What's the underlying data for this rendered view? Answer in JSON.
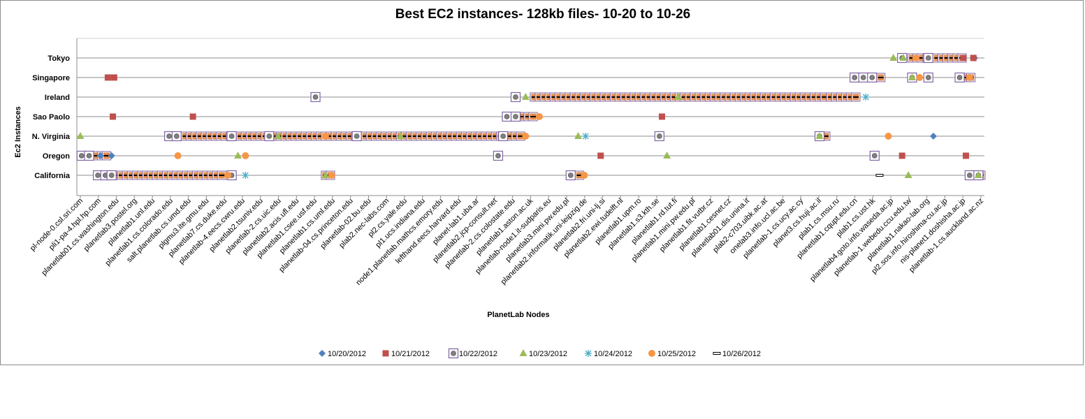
{
  "chart_data": {
    "type": "scatter",
    "title": "Best EC2 instances- 128kb files- 10-20 to 10-26",
    "xlabel": "PlanetLab Nodes",
    "ylabel": "Ec2 Instances",
    "y_categories": [
      "California",
      "Oregon",
      "N. Virginia",
      "Sao Paolo",
      "Ireland",
      "Singapore",
      "Tokyo"
    ],
    "grid": "horizontal",
    "legend_position": "bottom",
    "x_labels": [
      "pl-node-0.csl.sri.com",
      "pli1-pa-4.hpl.hp.com",
      "planetlab01.cs.washington.edu",
      "planetlab3.postel.org",
      "planetlab1.unl.edu",
      "planetlab1.cs.colorado.edu",
      "salt.planetlab.cs.umd.edu",
      "plgmu3.ite.gmu.edu",
      "planetlab7.cs.duke.edu",
      "planetlab-4.eecs.cwru.edu",
      "planetlab2.tsuniv.edu",
      "planetlab-2.cs.uic.edu",
      "planetlab2.acis.ufl.edu",
      "planetlab1.csee.usf.edu",
      "planetlab1.cs.uml.edu",
      "planetlab-04.cs.princeton.edu",
      "planetlab-02.bu.edu",
      "plab2.nec-labs.com",
      "pl2.cs.yale.edu",
      "pl1.ucs.indiana.edu",
      "node1.planetlab.mathcs.emory.edu",
      "lefthand.eecs.harvard.edu",
      "planet-lab1.uba.ar",
      "planetlab2.jcp-consult.net",
      "planetlab-2.cs.colostate.edu",
      "planetlab1.aston.ac.uk",
      "planetlab-node1.it-sudparis.eu",
      "planetlab3.mini.pw.edu.pl",
      "planetlab2.informatik.uni-leipzig.de",
      "planetlab2.fri.uni-lj.si",
      "planetlab2.ewi.tudelft.nl",
      "planetlab1.upm.ro",
      "planetlab1.s3.kth.se",
      "planetlab1.rd.tut.fi",
      "planetlab1.mini.pw.edu.pl",
      "planetlab1.fit.vutbr.cz",
      "planetlab1.cesnet.cz",
      "planetlab01.dis.unina.it",
      "plab2-c703.uibk.ac.at",
      "onelab3.info.ucl.ac.be",
      "planetlab-1.cs.ucy.ac.cy",
      "planet3.cs.huji.ac.il",
      "plab1.cs.msu.ru",
      "planetlab1.cqupt.edu.cn",
      "plab1.cs.ust.hk",
      "planetlab4.goto.info.waseda.ac.jp",
      "planetlab-1.webedu.ccu.edu.tw",
      "planetlab1.nakao-lab.org",
      "pl2.sos.info.hiroshima-cu.ac.jp",
      "nis-planet1.doshisha.ac.jp",
      "planetlab-1.cs.auckland.ac.nz"
    ],
    "series": [
      {
        "name": "10/20/2012",
        "marker": "diamond",
        "color": "#4f81bd",
        "points": [
          [
            71.5,
            6
          ],
          [
            68.2,
            2
          ],
          [
            1.6,
            1
          ],
          [
            2.5,
            1
          ]
        ]
      },
      {
        "name": "10/21/2012",
        "marker": "square",
        "color": "#c0504d",
        "points": [
          [
            9,
            3
          ],
          [
            46.5,
            3
          ],
          [
            41.6,
            1
          ],
          [
            70.6,
            6
          ],
          [
            71.4,
            6
          ],
          [
            2.2,
            5
          ],
          [
            2.7,
            5
          ],
          [
            2.6,
            3
          ],
          [
            65.7,
            1
          ],
          [
            70.8,
            1
          ]
        ]
      },
      {
        "name": "10/22/2012",
        "marker": "boxed-circle",
        "color": "#8064a2",
        "points": [
          [
            65.7,
            6
          ],
          [
            67.8,
            6
          ],
          [
            61.9,
            5
          ],
          [
            62.6,
            5
          ],
          [
            63.3,
            5
          ],
          [
            66.5,
            5
          ],
          [
            67.8,
            5
          ],
          [
            70.3,
            5
          ],
          [
            18.8,
            4
          ],
          [
            34.8,
            4
          ],
          [
            34.1,
            3
          ],
          [
            34.8,
            3
          ],
          [
            7.1,
            2
          ],
          [
            7.7,
            2
          ],
          [
            12.1,
            2
          ],
          [
            15.1,
            2
          ],
          [
            22.1,
            2
          ],
          [
            33.8,
            2
          ],
          [
            46.3,
            2
          ],
          [
            59.1,
            2
          ],
          [
            0.1,
            1
          ],
          [
            0.7,
            1
          ],
          [
            33.4,
            1
          ],
          [
            63.5,
            1
          ],
          [
            1.4,
            0
          ],
          [
            2.0,
            0
          ],
          [
            2.5,
            0
          ],
          [
            12.1,
            0
          ],
          [
            39.2,
            0
          ],
          [
            71.1,
            0
          ],
          [
            71.8,
            0
          ]
        ]
      },
      {
        "name": "10/23/2012",
        "marker": "triangle",
        "color": "#9bbb59",
        "points": [
          [
            65.0,
            6
          ],
          [
            65.8,
            6
          ],
          [
            66.5,
            5
          ],
          [
            35.6,
            4
          ],
          [
            47.8,
            4
          ],
          [
            0,
            2
          ],
          [
            15.8,
            2
          ],
          [
            25.6,
            2
          ],
          [
            39.8,
            2
          ],
          [
            59.1,
            2
          ],
          [
            12.6,
            1
          ],
          [
            46.9,
            1
          ],
          [
            19.6,
            0
          ],
          [
            66.2,
            0
          ],
          [
            71.8,
            0
          ]
        ]
      },
      {
        "name": "10/24/2012",
        "marker": "star",
        "color": "#4bacc6",
        "points": [
          [
            62.8,
            4
          ],
          [
            40.4,
            2
          ],
          [
            13.2,
            0
          ]
        ]
      },
      {
        "name": "10/25/2012",
        "marker": "circle",
        "color": "#f79646",
        "points": [
          [
            66.8,
            6
          ],
          [
            67.1,
            5
          ],
          [
            71.1,
            5
          ],
          [
            36.7,
            3
          ],
          [
            19.6,
            2
          ],
          [
            35.6,
            2
          ],
          [
            64.6,
            2
          ],
          [
            7.8,
            1
          ],
          [
            13.2,
            1
          ],
          [
            11.8,
            0
          ],
          [
            20.1,
            0
          ],
          [
            40.3,
            0
          ]
        ]
      },
      {
        "name": "10/26/2012",
        "marker": "dash",
        "color": "#000000",
        "points": [
          [
            63.9,
            0
          ]
        ]
      }
    ],
    "fills": [
      {
        "y": 6,
        "from": 66.5,
        "to": 70.8
      },
      {
        "y": 5,
        "from": 62.0,
        "to": 64.0
      },
      {
        "y": 5,
        "from": 70.8,
        "to": 71.4
      },
      {
        "y": 4,
        "from": 36.3,
        "to": 59.8
      },
      {
        "y": 4,
        "from": 60.0,
        "to": 62.2
      },
      {
        "y": 3,
        "from": 35.0,
        "to": 36.4
      },
      {
        "y": 2,
        "from": 7.6,
        "to": 35.2
      },
      {
        "y": 2,
        "from": 59.2,
        "to": 59.8
      },
      {
        "y": 1,
        "from": 0.5,
        "to": 2.3
      },
      {
        "y": 0,
        "from": 2.1,
        "to": 11.4
      },
      {
        "y": 0,
        "from": 19.6,
        "to": 20.0
      },
      {
        "y": 0,
        "from": 39.5,
        "to": 39.9
      },
      {
        "y": 0,
        "from": 71.6,
        "to": 72.0
      }
    ],
    "x_range": [
      0,
      72
    ]
  }
}
